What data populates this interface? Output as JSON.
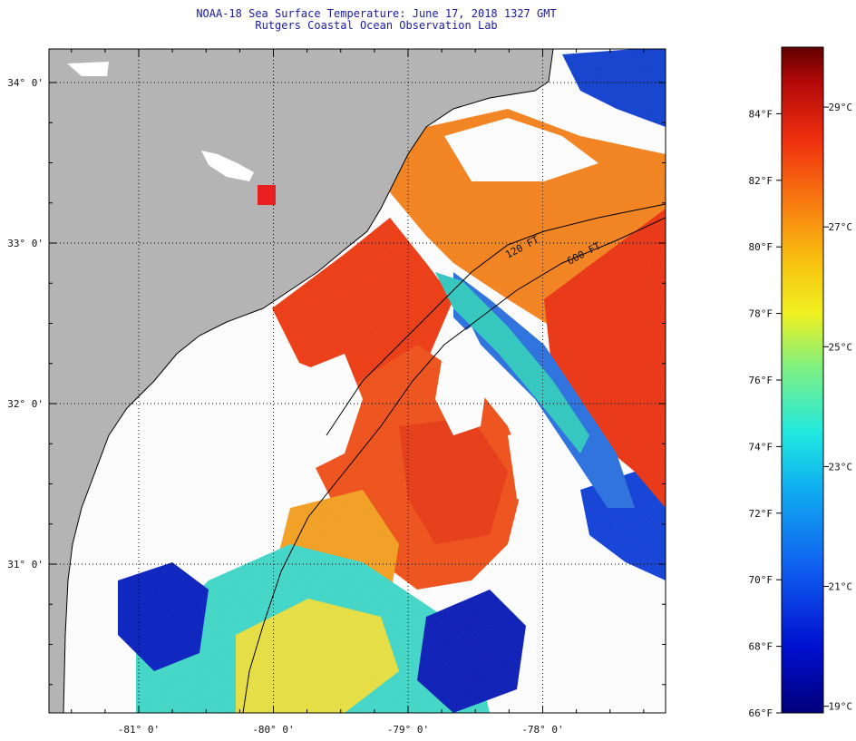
{
  "title_line1": "NOAA-18 Sea Surface Temperature:  June 17, 2018 1327 GMT",
  "title_line2": "Rutgers Coastal Ocean Observation Lab",
  "lat_labels": [
    {
      "deg": 34,
      "text": "34° 0'"
    },
    {
      "deg": 33,
      "text": "33° 0'"
    },
    {
      "deg": 32,
      "text": "32° 0'"
    },
    {
      "deg": 31,
      "text": "31° 0'"
    }
  ],
  "lon_labels": [
    {
      "deg": -81,
      "text": "-81° 0'"
    },
    {
      "deg": -80,
      "text": "-80° 0'"
    },
    {
      "deg": -79,
      "text": "-79° 0'"
    },
    {
      "deg": -78,
      "text": "-78° 0'"
    }
  ],
  "contours": [
    {
      "label": "120 FT"
    },
    {
      "label": "600 FT"
    }
  ],
  "colorbar": {
    "f_labels": [
      "84°F",
      "82°F",
      "80°F",
      "78°F",
      "76°F",
      "74°F",
      "72°F",
      "70°F",
      "68°F",
      "66°F"
    ],
    "f_values": [
      84,
      82,
      80,
      78,
      76,
      74,
      72,
      70,
      68,
      66
    ],
    "c_labels": [
      "29°C",
      "27°C",
      "25°C",
      "23°C",
      "21°C",
      "19°C"
    ],
    "c_values": [
      29,
      27,
      25,
      23,
      21,
      19
    ],
    "min_f": 66,
    "max_f": 86
  },
  "colors": {
    "land": "#b4b4b4",
    "cloud": "#ffffff",
    "warm": "#f03010",
    "orange": "#f5801e",
    "cool_blue": "#0018c8",
    "cyan": "#20e0e0",
    "yellow": "#f0e828"
  }
}
